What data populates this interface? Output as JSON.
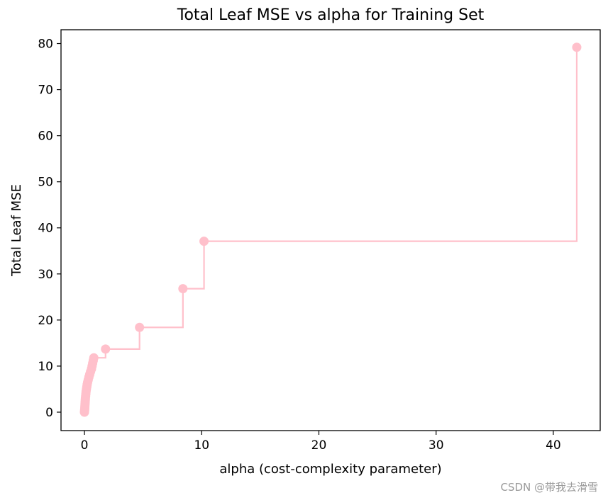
{
  "chart_data": {
    "type": "line",
    "drawstyle": "steps-post",
    "markers": true,
    "title": "Total Leaf MSE vs alpha for Training Set",
    "xlabel": "alpha (cost-complexity parameter)",
    "ylabel": "Total Leaf MSE",
    "xlim": [
      -2,
      44
    ],
    "ylim": [
      -4,
      83
    ],
    "xticks": [
      0,
      10,
      20,
      30,
      40
    ],
    "yticks": [
      0,
      10,
      20,
      30,
      40,
      50,
      60,
      70,
      80
    ],
    "grid": false,
    "color": "#FFC0CB",
    "series": [
      {
        "x": [
          0.0,
          0.01,
          0.02,
          0.03,
          0.04,
          0.05,
          0.06,
          0.07,
          0.08,
          0.1,
          0.12,
          0.14,
          0.17,
          0.2,
          0.23,
          0.27,
          0.32,
          0.38,
          0.45,
          0.52,
          0.6,
          0.65,
          0.7,
          0.75,
          0.8,
          1.8,
          4.7,
          8.4,
          10.2,
          42.0
        ],
        "y": [
          0.0,
          0.3,
          0.6,
          1.0,
          1.4,
          1.8,
          2.2,
          2.6,
          3.0,
          3.5,
          4.0,
          4.5,
          5.0,
          5.5,
          6.0,
          6.5,
          7.0,
          7.6,
          8.2,
          8.8,
          9.4,
          10.0,
          10.6,
          11.2,
          11.8,
          13.7,
          18.4,
          26.8,
          37.1,
          79.2
        ]
      }
    ]
  },
  "watermark": "CSDN @带我去滑雪"
}
